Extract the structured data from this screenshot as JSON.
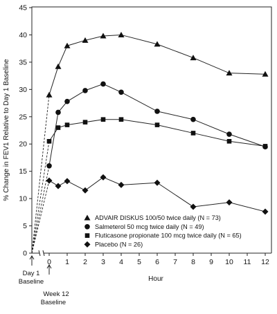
{
  "chart_data": {
    "type": "line",
    "xlabel": "Hour",
    "ylabel": "% Change in FEV1 Relative to Day 1 Baseline",
    "ylim": [
      0,
      45
    ],
    "y_ticks": [
      0,
      5,
      10,
      15,
      20,
      25,
      30,
      35,
      40,
      45
    ],
    "x_ticks": [
      0,
      1,
      2,
      3,
      4,
      5,
      6,
      7,
      8,
      9,
      10,
      11,
      12
    ],
    "annotations": {
      "day1": [
        "Day 1",
        "Baseline"
      ],
      "week12": [
        "Week 12",
        "Baseline"
      ]
    },
    "legend_position": "lower-center",
    "baseline_value": 0,
    "series": [
      {
        "name": "ADVAIR DISKUS 100/50 twice daily (N = 73)",
        "marker": "triangle",
        "x": [
          0,
          0.5,
          1,
          2,
          3,
          4,
          6,
          8,
          10,
          12
        ],
        "values": [
          29,
          34.2,
          38,
          39,
          39.8,
          40,
          38.3,
          35.8,
          33,
          32.8
        ]
      },
      {
        "name": "Salmeterol 50 mcg twice daily (N = 49)",
        "marker": "circle",
        "x": [
          0,
          0.5,
          1,
          2,
          3,
          4,
          6,
          8,
          10,
          12
        ],
        "values": [
          16,
          25.8,
          27.8,
          29.8,
          31,
          29.5,
          26,
          24.5,
          21.8,
          19.5
        ]
      },
      {
        "name": "Fluticasone propionate 100 mcg twice daily (N = 65)",
        "marker": "square",
        "x": [
          0,
          0.5,
          1,
          2,
          3,
          4,
          6,
          8,
          10,
          12
        ],
        "values": [
          20.5,
          23,
          23.5,
          24,
          24.5,
          24.5,
          23.5,
          22,
          20.5,
          19.6
        ]
      },
      {
        "name": "Placebo (N = 26)",
        "marker": "diamond",
        "x": [
          0,
          0.5,
          1,
          2,
          3,
          4,
          6,
          8,
          10,
          12
        ],
        "values": [
          13.3,
          12.3,
          13.2,
          11.5,
          13.9,
          12.5,
          12.9,
          8.5,
          9.3,
          7.6
        ]
      }
    ]
  }
}
